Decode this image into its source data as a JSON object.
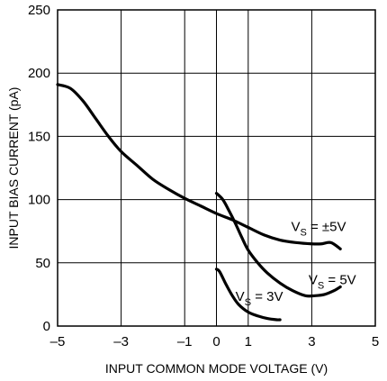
{
  "chart_data": {
    "type": "line",
    "title": "",
    "xlabel": "INPUT COMMON MODE VOLTAGE (V)",
    "ylabel": "INPUT BIAS CURRENT (pA)",
    "xlim": [
      -5,
      5
    ],
    "ylim": [
      0,
      250
    ],
    "grid": true,
    "x_ticks": [
      {
        "value": -5,
        "label": "–5"
      },
      {
        "value": -3,
        "label": "–3"
      },
      {
        "value": -1,
        "label": "–1"
      },
      {
        "value": 0,
        "label": "0"
      },
      {
        "value": 1,
        "label": "1"
      },
      {
        "value": 3,
        "label": "3"
      },
      {
        "value": 5,
        "label": "5"
      }
    ],
    "y_ticks": [
      {
        "value": 0,
        "label": "0"
      },
      {
        "value": 50,
        "label": "50"
      },
      {
        "value": 100,
        "label": "100"
      },
      {
        "value": 150,
        "label": "150"
      },
      {
        "value": 200,
        "label": "200"
      },
      {
        "value": 250,
        "label": "250"
      }
    ],
    "series": [
      {
        "name_prefix": "V",
        "name_sub": "S",
        "name_suffix": " = ±5V",
        "label_at": [
          2.35,
          75
        ],
        "x": [
          -5.0,
          -4.6,
          -4.2,
          -3.8,
          -3.4,
          -3.0,
          -2.5,
          -2.0,
          -1.5,
          -1.0,
          -0.5,
          0.0,
          0.5,
          1.0,
          1.5,
          2.0,
          2.5,
          3.0,
          3.3,
          3.6,
          3.9
        ],
        "y": [
          191,
          188,
          178,
          164,
          150,
          138,
          127,
          116,
          108,
          101,
          95,
          89,
          84,
          78,
          72,
          68,
          66,
          65,
          65,
          66,
          61
        ]
      },
      {
        "name_prefix": "V",
        "name_sub": "S",
        "name_suffix": " = 5V",
        "label_at": [
          2.9,
          33
        ],
        "x": [
          0.0,
          0.2,
          0.4,
          0.6,
          0.8,
          1.0,
          1.3,
          1.6,
          2.0,
          2.4,
          2.8,
          3.1,
          3.4,
          3.7,
          3.9
        ],
        "y": [
          105,
          100,
          91,
          81,
          70,
          60,
          50,
          42,
          34,
          28,
          24,
          24,
          25,
          28,
          31
        ]
      },
      {
        "name_prefix": "V",
        "name_sub": "S",
        "name_suffix": " = 3V",
        "label_at": [
          0.6,
          20
        ],
        "x": [
          0.0,
          0.1,
          0.3,
          0.5,
          0.7,
          1.0,
          1.3,
          1.6,
          1.9,
          2.0
        ],
        "y": [
          45,
          43,
          33,
          24,
          17,
          11,
          8,
          6,
          5,
          5
        ]
      }
    ]
  }
}
